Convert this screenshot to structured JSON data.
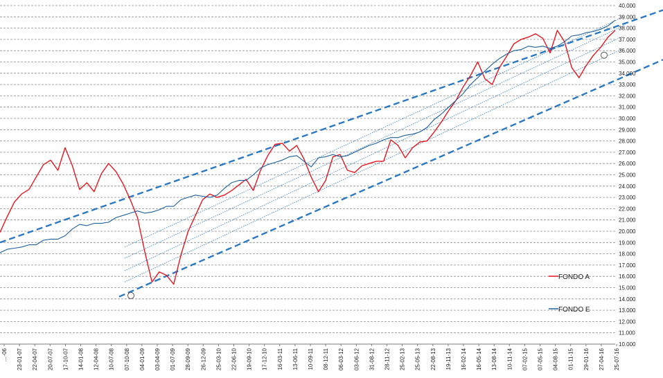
{
  "chart_data": {
    "type": "line",
    "title": "",
    "xlabel": "",
    "ylabel": "",
    "ylim": [
      10000,
      40000
    ],
    "y_ticks": [
      "10.000",
      "11.000",
      "12.000",
      "13.000",
      "14.000",
      "15.000",
      "16.000",
      "17.000",
      "18.000",
      "19.000",
      "20.000",
      "21.000",
      "22.000",
      "23.000",
      "24.000",
      "25.000",
      "26.000",
      "27.000",
      "28.000",
      "29.000",
      "30.000",
      "31.000",
      "32.000",
      "33.000",
      "34.000",
      "35.000",
      "36.000",
      "37.000",
      "38.000",
      "39.000",
      "40.000"
    ],
    "x_ticks": [
      "…-06",
      "23-01-07",
      "22-04-07",
      "20-07-07",
      "17-10-07",
      "14-01-08",
      "12-04-08",
      "10-07-08",
      "07-10-08",
      "04-01-09",
      "03-04-09",
      "01-07-09",
      "28-09-09",
      "26-12-09",
      "25-03-10",
      "22-06-10",
      "19-09-10",
      "17-12-10",
      "16-03-11",
      "13-06-11",
      "10-09-11",
      "08-12-11",
      "06-03-12",
      "03-06-12",
      "31-08-12",
      "28-11-12",
      "25-02-13",
      "25-05-13",
      "22-08-13",
      "19-11-13",
      "16-02-14",
      "16-05-14",
      "13-08-14",
      "10-11-14",
      "07-02-15",
      "07-05-15",
      "04-08-15",
      "01-11-15",
      "29-01-16",
      "27-04-16",
      "25-07-16"
    ],
    "grid": true,
    "legend_position": "bottom-right",
    "colors": {
      "fondo_a": "#e8161e",
      "fondo_e": "#1f5f9a",
      "channel": "#2b78c2"
    },
    "series": [
      {
        "name": "FONDO A",
        "color": "#e8161e",
        "values": [
          19900,
          21300,
          22600,
          23300,
          23700,
          24800,
          25900,
          26300,
          25400,
          27400,
          25800,
          23700,
          24300,
          23500,
          25100,
          26000,
          25300,
          24200,
          22800,
          21200,
          18200,
          15500,
          16400,
          16100,
          15300,
          17900,
          20000,
          21400,
          22800,
          23300,
          23000,
          23200,
          23600,
          24100,
          24600,
          23600,
          25400,
          26700,
          27700,
          27800,
          27100,
          27600,
          26400,
          24800,
          23500,
          24500,
          26600,
          26800,
          25400,
          25200,
          25800,
          26000,
          26200,
          26200,
          28100,
          27600,
          26500,
          27400,
          27900,
          28000,
          28800,
          29700,
          30700,
          31600,
          32800,
          33800,
          35000,
          33500,
          33000,
          34500,
          35500,
          36600,
          37000,
          37200,
          37500,
          37100,
          35800,
          37800,
          36800,
          34500,
          33600,
          34700,
          35600,
          36300,
          37200,
          37800
        ]
      },
      {
        "name": "FONDO E",
        "color": "#1f5f9a",
        "values": [
          18100,
          18400,
          18500,
          18600,
          18800,
          18800,
          19200,
          19300,
          19300,
          19600,
          20200,
          20600,
          20500,
          20700,
          20700,
          20800,
          21200,
          21400,
          21600,
          21800,
          21600,
          21700,
          21900,
          22200,
          22200,
          22800,
          23000,
          23200,
          23100,
          23000,
          23200,
          23800,
          24300,
          24500,
          24500,
          25000,
          25600,
          25900,
          26100,
          26300,
          26600,
          26700,
          26200,
          25700,
          26500,
          26600,
          26800,
          26600,
          26700,
          27000,
          27300,
          27600,
          27800,
          28100,
          28300,
          28300,
          28500,
          28600,
          28800,
          29200,
          29900,
          30400,
          31000,
          31600,
          32200,
          33000,
          33600,
          34200,
          34800,
          35300,
          35700,
          36000,
          36100,
          36400,
          36300,
          36400,
          36200,
          36400,
          36800,
          37300,
          37400,
          37600,
          37700,
          37900,
          38200,
          38700
        ]
      }
    ]
  },
  "legend": {
    "fondo_a": "FONDO A",
    "fondo_e": "FONDO E"
  }
}
